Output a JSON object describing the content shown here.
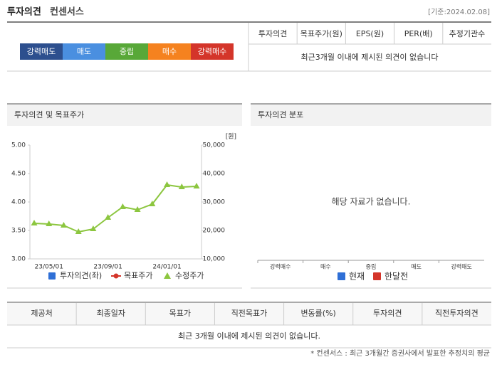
{
  "header": {
    "title_bold": "투자의견",
    "title": "컨센서스",
    "date": "[기준:2024.02.08]"
  },
  "rating_bar": [
    {
      "label": "강력매도",
      "color": "#2d4f8e"
    },
    {
      "label": "매도",
      "color": "#4a8fe0"
    },
    {
      "label": "중립",
      "color": "#58a838"
    },
    {
      "label": "매수",
      "color": "#f5821f"
    },
    {
      "label": "강력매수",
      "color": "#d4352a"
    }
  ],
  "summary_table": {
    "columns": [
      "투자의견",
      "목표주가(원)",
      "EPS(원)",
      "PER(배)",
      "추정기관수"
    ],
    "message": "최근3개월 이내에 제시된 의견이 없습니다"
  },
  "chart_data": [
    {
      "type": "line",
      "title": "투자의견 및 목표주가",
      "categories": [
        null,
        "23/05/01",
        null,
        null,
        null,
        "23/09/01",
        null,
        null,
        null,
        "24/01/01",
        null,
        null
      ],
      "ylim": [
        3,
        5
      ],
      "yticks": [
        {
          "value": 3,
          "label": "3.00"
        },
        {
          "value": 3.5,
          "label": "3.50"
        },
        {
          "value": 4,
          "label": "4.00"
        },
        {
          "value": 4.5,
          "label": "4.50"
        },
        {
          "value": 5,
          "label": "5.00"
        }
      ],
      "y2lim": [
        10000,
        50000
      ],
      "y2ticks": [
        {
          "value": 10000,
          "label": "10,000"
        },
        {
          "value": 20000,
          "label": "20,000"
        },
        {
          "value": 30000,
          "label": "30,000"
        },
        {
          "value": 40000,
          "label": "40,000"
        },
        {
          "value": 50000,
          "label": "50,000"
        }
      ],
      "y2_unit": "[원]",
      "series": [
        {
          "name": "투자의견(좌)",
          "color": "#2f6fd6",
          "values": [
            null,
            null,
            null,
            null,
            null,
            null,
            null,
            null,
            null,
            null,
            null,
            null
          ]
        },
        {
          "name": "목표주가",
          "color": "#d4352a",
          "axis": "y2",
          "values": [
            null,
            null,
            null,
            null,
            null,
            null,
            null,
            null,
            null,
            null,
            null,
            null
          ]
        },
        {
          "name": "수정주가",
          "color": "#8cc63f",
          "axis": "y2",
          "values": [
            22500,
            22250,
            21750,
            19500,
            20500,
            24500,
            28250,
            27250,
            29250,
            36000,
            35250,
            35500
          ]
        }
      ]
    },
    {
      "type": "bar",
      "title": "투자의견 분포",
      "message": "해당 자료가 없습니다.",
      "categories": [
        "강력매수",
        "매수",
        "중립",
        "매도",
        "강력매도"
      ],
      "series": [
        {
          "name": "현재",
          "color": "#2f6fd6",
          "values": [
            null,
            null,
            null,
            null,
            null
          ]
        },
        {
          "name": "한달전",
          "color": "#d4352a",
          "values": [
            null,
            null,
            null,
            null,
            null
          ]
        }
      ]
    }
  ],
  "bottom_table": {
    "columns": [
      "제공처",
      "최종일자",
      "목표가",
      "직전목표가",
      "변동률(%)",
      "투자의견",
      "직전투자의견"
    ],
    "message": "최근 3개월 이내에 제시된 의견이 없습니다."
  },
  "footnote": "* 컨센서스 : 최근 3개월간 증권사에서 발표한 추정치의 평균"
}
